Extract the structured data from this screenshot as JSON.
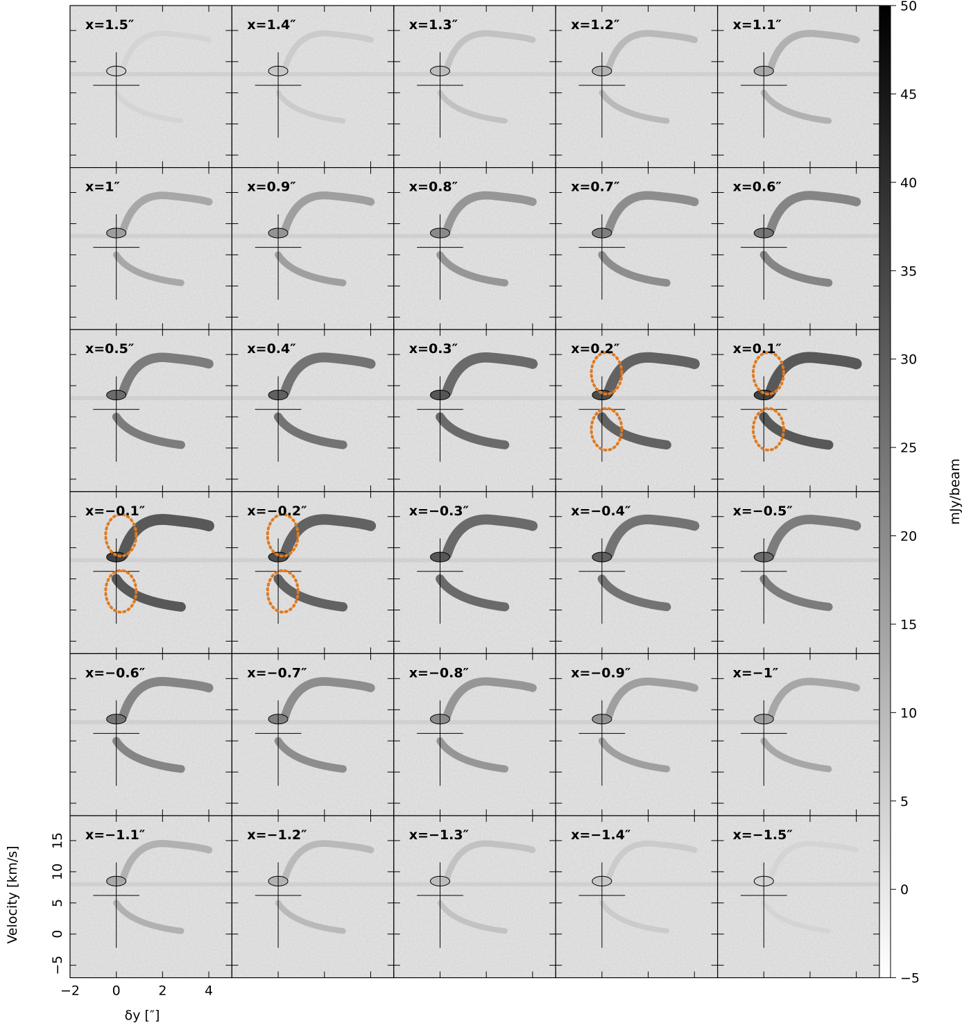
{
  "chart_data": {
    "type": "pv-grid",
    "panel_labels": [
      "x=1.5″",
      "x=1.4″",
      "x=1.3″",
      "x=1.2″",
      "x=1.1″",
      "x=1″",
      "x=0.9″",
      "x=0.8″",
      "x=0.7″",
      "x=0.6″",
      "x=0.5″",
      "x=0.4″",
      "x=0.3″",
      "x=0.2″",
      "x=0.1″",
      "x=−0.1″",
      "x=−0.2″",
      "x=−0.3″",
      "x=−0.4″",
      "x=−0.5″",
      "x=−0.6″",
      "x=−0.7″",
      "x=−0.8″",
      "x=−0.9″",
      "x=−1″",
      "x=−1.1″",
      "x=−1.2″",
      "x=−1.3″",
      "x=−1.4″",
      "x=−1.5″"
    ],
    "x_label": "δy [″]",
    "y_label": "Velocity [km/s]",
    "xlim": [
      -2,
      5
    ],
    "ylim": [
      -7,
      19
    ],
    "xticks": [
      {
        "value": -2,
        "label": "−2"
      },
      0,
      2,
      4
    ],
    "yticks": [
      {
        "value": -5,
        "label": "−5"
      },
      0,
      5,
      10,
      15
    ],
    "colorbar": {
      "label": "mJy/beam",
      "lim": [
        -5,
        50
      ],
      "ticks": [
        {
          "value": -5,
          "label": "−5"
        },
        0,
        5,
        10,
        15,
        20,
        25,
        30,
        35,
        40,
        45,
        50
      ]
    }
  }
}
